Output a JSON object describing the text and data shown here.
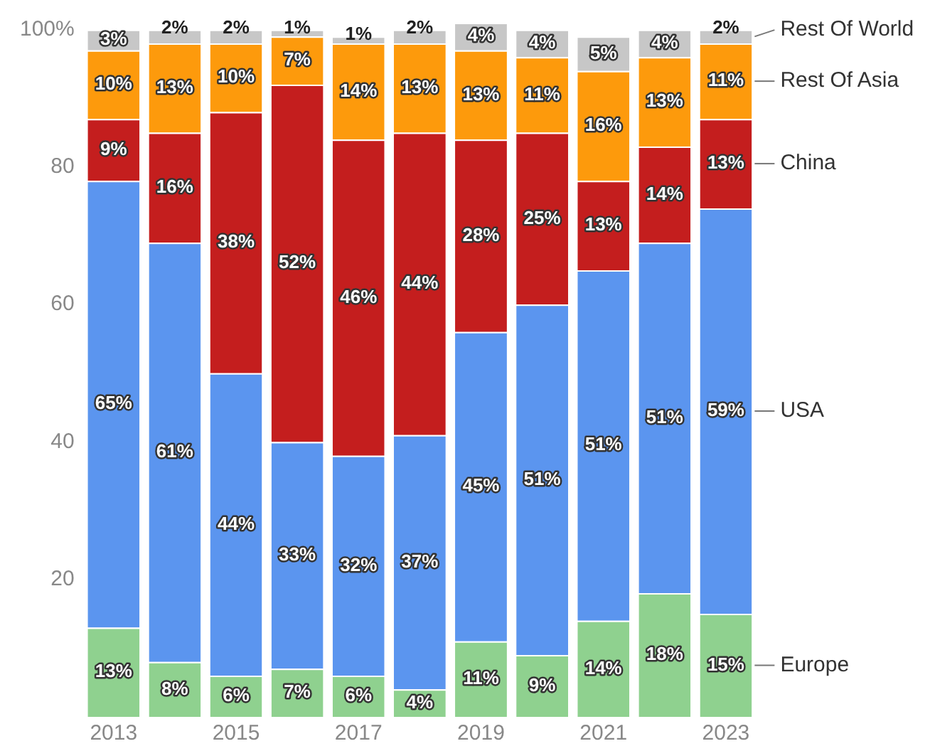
{
  "chart_data": {
    "type": "bar",
    "stacked": true,
    "categories": [
      "2013",
      null,
      "2015",
      null,
      "2017",
      null,
      "2019",
      null,
      "2021",
      null,
      "2023"
    ],
    "ylim": [
      0,
      101
    ],
    "yticks": [
      20,
      40,
      60,
      80,
      {
        "value": 100,
        "label": "100%"
      }
    ],
    "grid": false,
    "legend": false,
    "series": [
      {
        "name": "Europe",
        "color": "#8fd18f",
        "values": [
          13,
          8,
          6,
          7,
          6,
          4,
          11,
          9,
          14,
          18,
          15
        ],
        "value_labels": [
          "13%",
          "8%",
          "6%",
          "7%",
          "6%",
          "4%",
          "11%",
          "9%",
          "14%",
          "18%",
          "15%"
        ]
      },
      {
        "name": "USA",
        "color": "#5b95ef",
        "values": [
          65,
          61,
          44,
          33,
          32,
          37,
          45,
          51,
          51,
          51,
          59
        ],
        "value_labels": [
          "65%",
          "61%",
          "44%",
          "33%",
          "32%",
          "37%",
          "45%",
          "51%",
          "51%",
          "51%",
          "59%"
        ]
      },
      {
        "name": "China",
        "color": "#c41e1e",
        "values": [
          9,
          16,
          38,
          52,
          46,
          44,
          28,
          25,
          13,
          14,
          13
        ],
        "value_labels": [
          "9%",
          "16%",
          "38%",
          "52%",
          "46%",
          "44%",
          "28%",
          "25%",
          "13%",
          "14%",
          "13%"
        ]
      },
      {
        "name": "Rest Of Asia",
        "color": "#fd9a0c",
        "values": [
          10,
          13,
          10,
          7,
          14,
          13,
          13,
          11,
          16,
          13,
          11
        ],
        "value_labels": [
          "10%",
          "13%",
          "10%",
          "7%",
          "14%",
          "13%",
          "13%",
          "11%",
          "16%",
          "13%",
          "11%"
        ]
      },
      {
        "name": "Rest Of World",
        "color": "#c7c7c7",
        "values": [
          3,
          2,
          2,
          1,
          1,
          2,
          4,
          4,
          5,
          4,
          2
        ],
        "value_labels": [
          "3%",
          "2%",
          "2%",
          "1%",
          "1%",
          "2%",
          "4%",
          "4%",
          "5%",
          "4%",
          "2%"
        ]
      }
    ]
  }
}
